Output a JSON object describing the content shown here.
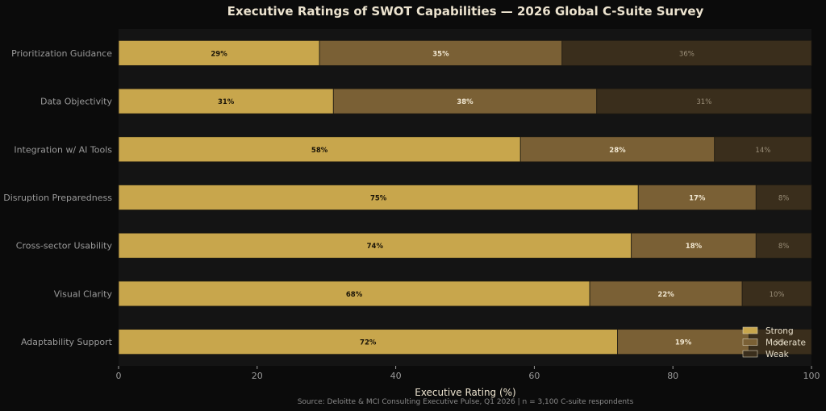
{
  "chart_data": {
    "type": "bar",
    "orientation": "horizontal",
    "stacked": true,
    "title": "Executive Ratings of SWOT Capabilities — 2026 Global C-Suite Survey",
    "xlabel": "Executive Rating (%)",
    "ylabel": "",
    "source": "Source: Deloitte & MCI Consulting Executive Pulse, Q1 2026  |  n = 3,100 C-suite respondents",
    "xlim": [
      0,
      100
    ],
    "xticks": [
      0,
      20,
      40,
      60,
      80,
      100
    ],
    "grid": false,
    "legend_position": "bottom-right",
    "categories": [
      "Prioritization Guidance",
      "Data Objectivity",
      "Integration w/ AI Tools",
      "Disruption Preparedness",
      "Cross-sector Usability",
      "Visual Clarity",
      "Adaptability Support"
    ],
    "series": [
      {
        "name": "Strong",
        "color": "#c8a64c",
        "label_color": "#1a1408",
        "values": [
          29,
          31,
          58,
          75,
          74,
          68,
          72
        ]
      },
      {
        "name": "Moderate",
        "color": "#7a6035",
        "label_color": "#f0e6d0",
        "values": [
          35,
          38,
          28,
          17,
          18,
          22,
          19
        ]
      },
      {
        "name": "Weak",
        "color": "#3a2e1c",
        "label_color": "#9a8e78",
        "values": [
          36,
          31,
          14,
          8,
          8,
          10,
          9
        ]
      }
    ],
    "colors": {
      "background": "#0b0b0b",
      "plot_background": "#141414",
      "title": "#ece3cf",
      "axis_text": "#9a9a9a",
      "axis_label": "#ece3cf",
      "source_text": "#8a8a8a"
    }
  }
}
